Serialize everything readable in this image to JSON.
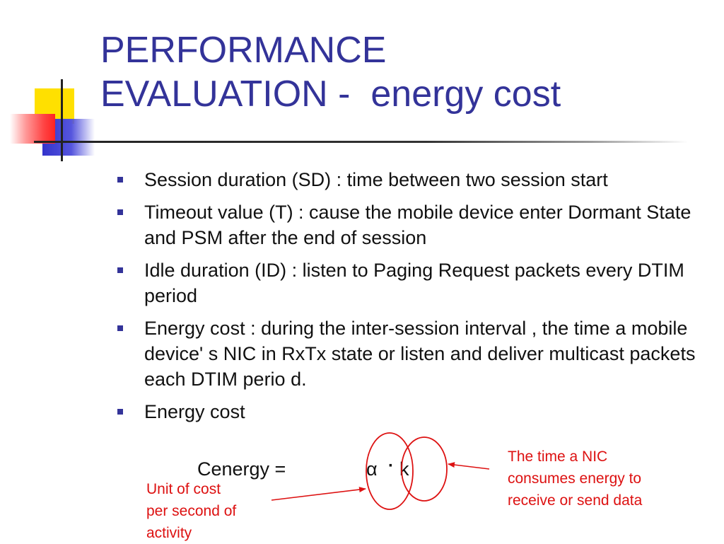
{
  "slide": {
    "title_lines": [
      "PERFORMANCE",
      "EVALUATION -  energy cost"
    ],
    "bullets": [
      "Session duration (SD) : time between two session start",
      "Timeout value (T) : cause the mobile device enter Dormant State and PSM after the end of session",
      "Idle duration (ID) : listen to Paging Request packets every DTIM period",
      "Energy cost : during the inter-session interval , the time a mobile device' s NIC in RxTx state or listen and deliver multicast packets each DTIM perio d.",
      "Energy cost"
    ],
    "formula": {
      "label": "Cenergy =",
      "alpha": "α",
      "dot": "·",
      "k": "k"
    },
    "annotations": {
      "left": "Unit of cost per second of activity",
      "right": "The time a NIC consumes energy to receive or send data"
    },
    "colors": {
      "title": "#333399",
      "annotation": "#dd1111",
      "bullet_marker": "#333399"
    }
  }
}
